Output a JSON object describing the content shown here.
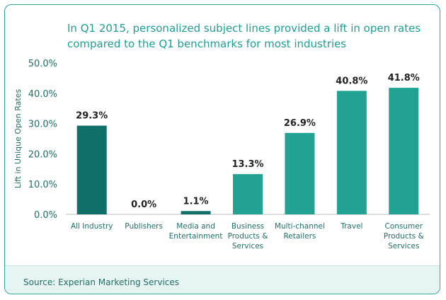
{
  "title_lines": [
    "In Q1 2015, personalized subject lines provided a lift in open rates",
    "compared to the Q1 benchmarks for most industries"
  ],
  "source": "Source: Experian Marketing Services",
  "colors": {
    "accent": "#1f9e93",
    "dark_bar": "#116f69",
    "light_bar": "#22a293",
    "axis": "#bdbdbd",
    "footer_bg": "#e6f4f2"
  },
  "chart_data": {
    "type": "bar",
    "title": "In Q1 2015, personalized subject lines provided a lift in open rates compared to the Q1 benchmarks for most industries",
    "ylabel": "Lift in Unique Open Rates",
    "xlabel": "",
    "ylim": [
      0,
      50
    ],
    "yticks": [
      "0.0%",
      "10.0%",
      "20.0%",
      "30.0%",
      "40.0%",
      "50.0%"
    ],
    "categories": [
      [
        "All Industry"
      ],
      [
        "Publishers"
      ],
      [
        "Media and",
        "Entertainment"
      ],
      [
        "Business",
        "Products &",
        "Services"
      ],
      [
        "Multi-channel",
        "Retailers"
      ],
      [
        "Travel"
      ],
      [
        "Consumer",
        "Products &",
        "Services"
      ]
    ],
    "values": [
      29.3,
      0.0,
      1.1,
      13.3,
      26.9,
      40.8,
      41.8
    ],
    "value_labels": [
      "29.3%",
      "0.0%",
      "1.1%",
      "13.3%",
      "26.9%",
      "40.8%",
      "41.8%"
    ],
    "bar_color_roles": [
      "dark",
      "dark",
      "dark",
      "light",
      "light",
      "light",
      "light"
    ],
    "grid": false,
    "legend": "none"
  }
}
